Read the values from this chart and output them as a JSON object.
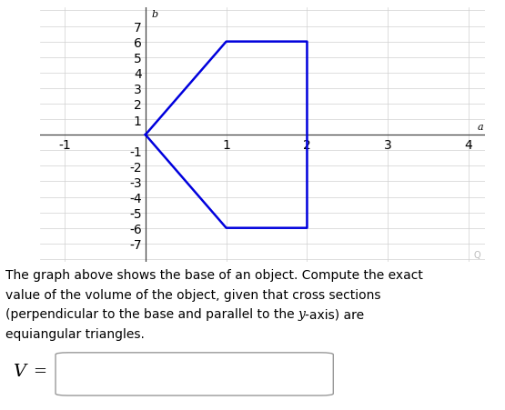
{
  "shape_vertices_x": [
    0,
    1,
    2,
    2,
    1,
    0
  ],
  "shape_vertices_y": [
    0,
    6,
    6,
    -6,
    -6,
    0
  ],
  "shape_color": "#0000dd",
  "shape_linewidth": 1.8,
  "xlim": [
    -1.3,
    4.2
  ],
  "ylim": [
    -8.2,
    8.2
  ],
  "xticks": [
    -1,
    1,
    2,
    3,
    4
  ],
  "yticks": [
    -7,
    -6,
    -5,
    -4,
    -3,
    -2,
    -1,
    1,
    2,
    3,
    4,
    5,
    6,
    7
  ],
  "xlabel_italic": "a",
  "ylabel_italic": "b",
  "grid_color": "#d0d0d0",
  "axis_color": "#444444",
  "tick_label_color": "#222222",
  "tick_fontsize": 6.5,
  "description_line1": "The graph above shows the base of an object. Compute the exact",
  "description_line2": "value of the volume of the object, given that cross sections",
  "description_line3": "(perpendicular to the base and parallel to the ",
  "description_line3_italic": "y",
  "description_line3_end": "-axis) are",
  "description_line4": "equiangular triangles.",
  "description_fontsize": 10.0,
  "label_V_fontsize": 13,
  "background_color": "#ffffff"
}
